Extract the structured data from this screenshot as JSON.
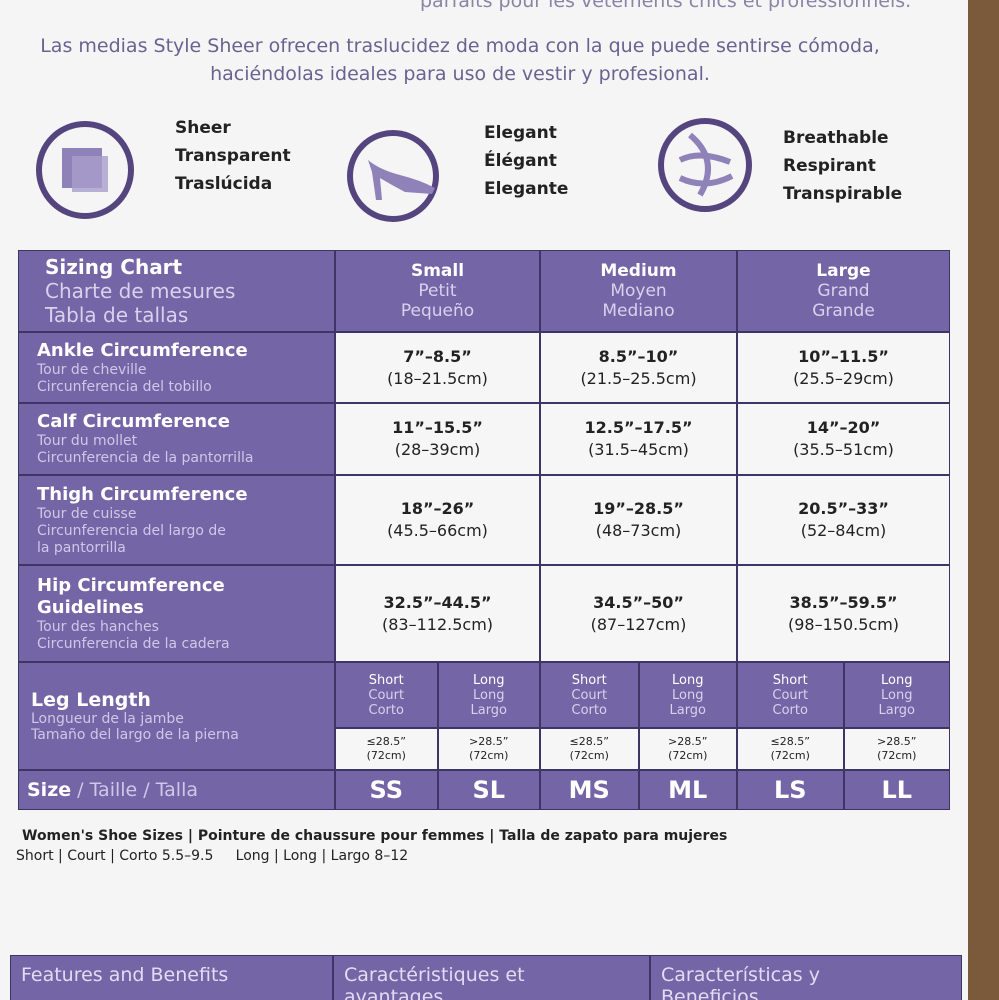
{
  "intro": {
    "fr_tail": "parfaits pour les vêtements chics et professionnels.",
    "es": "Las medias Style Sheer ofrecen traslucidez de moda con la que puede sentirse cómoda, haciéndolas ideales para uso de vestir y profesional."
  },
  "features": [
    {
      "lines": [
        "Sheer",
        "Transparent",
        "Traslúcida"
      ]
    },
    {
      "lines": [
        "Elegant",
        "Élégant",
        "Elegante"
      ]
    },
    {
      "lines": [
        "Breathable",
        "Respirant",
        "Transpirable"
      ]
    }
  ],
  "table": {
    "corner": [
      "Sizing Chart",
      "Charte de mesures",
      "Tabla de tallas"
    ],
    "sizes": [
      [
        "Small",
        "Petit",
        "Pequeño"
      ],
      [
        "Medium",
        "Moyen",
        "Mediano"
      ],
      [
        "Large",
        "Grand",
        "Grande"
      ]
    ],
    "rows": [
      {
        "title": [
          "Ankle Circumference"
        ],
        "sub": [
          "Tour de cheville",
          "Circunferencia del tobillo"
        ],
        "cells": [
          [
            "7”–8.5”",
            "(18–21.5cm)"
          ],
          [
            "8.5”–10”",
            "(21.5–25.5cm)"
          ],
          [
            "10”–11.5”",
            "(25.5–29cm)"
          ]
        ]
      },
      {
        "title": [
          "Calf Circumference"
        ],
        "sub": [
          "Tour du mollet",
          "Circunferencia de la pantorrilla"
        ],
        "cells": [
          [
            "11”–15.5”",
            "(28–39cm)"
          ],
          [
            "12.5”–17.5”",
            "(31.5–45cm)"
          ],
          [
            "14”–20”",
            "(35.5–51cm)"
          ]
        ]
      },
      {
        "title": [
          "Thigh Circumference"
        ],
        "sub": [
          "Tour de cuisse",
          "Circunferencia del largo de",
          "la pantorrilla"
        ],
        "cells": [
          [
            "18”–26”",
            "(45.5–66cm)"
          ],
          [
            "19”–28.5”",
            "(48–73cm)"
          ],
          [
            "20.5”–33”",
            "(52–84cm)"
          ]
        ]
      },
      {
        "title": [
          "Hip Circumference",
          "Guidelines"
        ],
        "sub": [
          "Tour des hanches",
          "Circunferencia de la cadera"
        ],
        "cells": [
          [
            "32.5”–44.5”",
            "(83–112.5cm)"
          ],
          [
            "34.5”–50”",
            "(87–127cm)"
          ],
          [
            "38.5”–59.5”",
            "(98–150.5cm)"
          ]
        ]
      }
    ],
    "leg_length": {
      "title": "Leg Length",
      "sub": [
        "Longueur de la jambe",
        "Tamaño del largo de la pierna"
      ],
      "columns": [
        {
          "type": [
            "Short",
            "Court",
            "Corto"
          ],
          "value": [
            "≤28.5”",
            "(72cm)"
          ]
        },
        {
          "type": [
            "Long",
            "Long",
            "Largo"
          ],
          "value": [
            ">28.5”",
            "(72cm)"
          ]
        },
        {
          "type": [
            "Short",
            "Court",
            "Corto"
          ],
          "value": [
            "≤28.5”",
            "(72cm)"
          ]
        },
        {
          "type": [
            "Long",
            "Long",
            "Largo"
          ],
          "value": [
            ">28.5”",
            "(72cm)"
          ]
        },
        {
          "type": [
            "Short",
            "Court",
            "Corto"
          ],
          "value": [
            "≤28.5”",
            "(72cm)"
          ]
        },
        {
          "type": [
            "Long",
            "Long",
            "Largo"
          ],
          "value": [
            ">28.5”",
            "(72cm)"
          ]
        }
      ]
    },
    "size_row": {
      "label": "Size",
      "label_alt": "/ Taille / Talla",
      "codes": [
        "SS",
        "SL",
        "MS",
        "ML",
        "LS",
        "LL"
      ]
    }
  },
  "shoe_sizes": {
    "title": "Women's Shoe Sizes | Pointure de chaussure pour femmes | Talla de zapato para mujeres",
    "detail": "Short | Court | Corto 5.5–9.5     Long | Long | Largo 8–12"
  },
  "bottom": [
    "Features and Benefits",
    "Caractéristiques et avantages",
    "Características y Beneficios"
  ]
}
